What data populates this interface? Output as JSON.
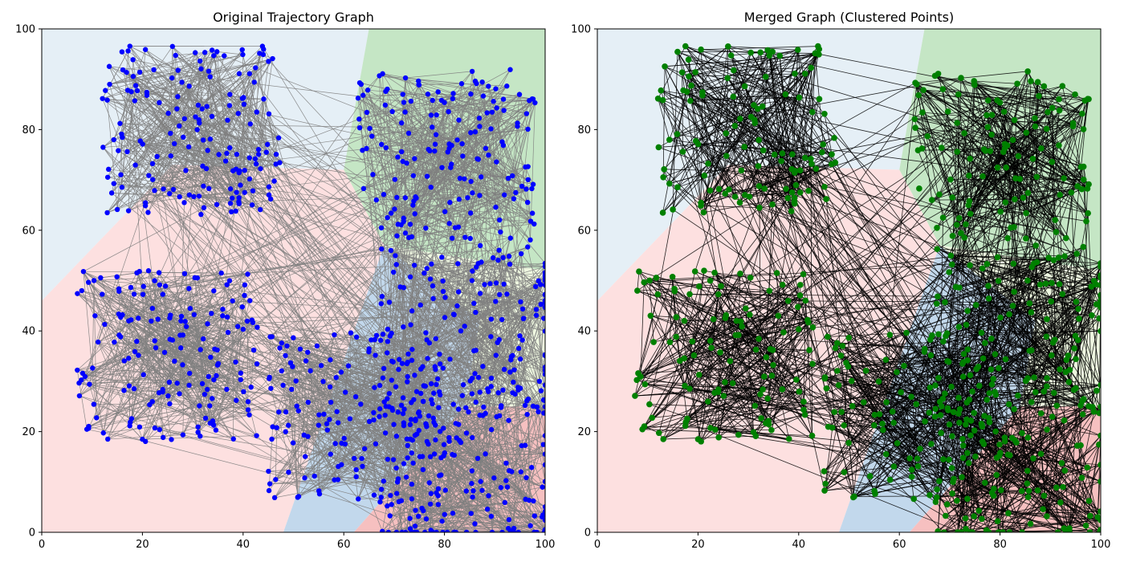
{
  "chart_data": [
    {
      "type": "scatter",
      "title": "Original Trajectory Graph",
      "xlabel": "",
      "ylabel": "",
      "xlim": [
        0,
        100
      ],
      "ylim": [
        0,
        100
      ],
      "xticks": [
        "0",
        "20",
        "40",
        "60",
        "80",
        "100"
      ],
      "yticks": [
        "0",
        "20",
        "40",
        "60",
        "80",
        "100"
      ],
      "grid": false,
      "legend": "none",
      "node_color": "#0000ff",
      "edge_color": "#808080",
      "approx_point_count": 1000,
      "approx_edge_count": 3000,
      "cluster_centers_approx": [
        [
          30,
          80
        ],
        [
          80,
          75
        ],
        [
          25,
          35
        ],
        [
          63,
          23
        ],
        [
          85,
          40
        ],
        [
          85,
          12
        ]
      ],
      "regions": [
        {
          "color": "#e5eff6",
          "polygon": [
            [
              0,
              100
            ],
            [
              65,
              100
            ],
            [
              60,
              72
            ],
            [
              26,
              73
            ],
            [
              0,
              46
            ]
          ]
        },
        {
          "color": "#c5e6c5",
          "polygon": [
            [
              65,
              100
            ],
            [
              100,
              100
            ],
            [
              100,
              52
            ],
            [
              68,
              57
            ],
            [
              60,
              72
            ]
          ]
        },
        {
          "color": "#fde0e0",
          "polygon": [
            [
              0,
              46
            ],
            [
              26,
              73
            ],
            [
              60,
              72
            ],
            [
              68,
              57
            ],
            [
              48,
              0
            ],
            [
              0,
              0
            ]
          ]
        },
        {
          "color": "#c2d8ec",
          "polygon": [
            [
              48,
              0
            ],
            [
              68,
              57
            ],
            [
              87,
              42
            ],
            [
              84,
              25
            ],
            [
              62,
              0
            ]
          ]
        },
        {
          "color": "#eef7e0",
          "polygon": [
            [
              68,
              57
            ],
            [
              100,
              52
            ],
            [
              100,
              25
            ],
            [
              84,
              25
            ],
            [
              87,
              42
            ]
          ]
        },
        {
          "color": "#f6c0c0",
          "polygon": [
            [
              62,
              0
            ],
            [
              84,
              25
            ],
            [
              100,
              25
            ],
            [
              100,
              0
            ]
          ]
        }
      ]
    },
    {
      "type": "scatter",
      "title": "Merged Graph (Clustered Points)",
      "xlabel": "",
      "ylabel": "",
      "xlim": [
        0,
        100
      ],
      "ylim": [
        0,
        100
      ],
      "xticks": [
        "0",
        "20",
        "40",
        "60",
        "80",
        "100"
      ],
      "yticks": [
        "0",
        "20",
        "40",
        "60",
        "80",
        "100"
      ],
      "grid": false,
      "legend": "none",
      "node_color": "#008000",
      "edge_color": "#000000",
      "approx_point_count": 700,
      "approx_edge_count": 2200,
      "cluster_centers_approx": [
        [
          30,
          80
        ],
        [
          80,
          75
        ],
        [
          25,
          35
        ],
        [
          63,
          23
        ],
        [
          85,
          40
        ],
        [
          85,
          12
        ]
      ],
      "regions": [
        {
          "color": "#e5eff6",
          "polygon": [
            [
              0,
              100
            ],
            [
              65,
              100
            ],
            [
              60,
              72
            ],
            [
              26,
              73
            ],
            [
              0,
              46
            ]
          ]
        },
        {
          "color": "#c5e6c5",
          "polygon": [
            [
              65,
              100
            ],
            [
              100,
              100
            ],
            [
              100,
              52
            ],
            [
              68,
              57
            ],
            [
              60,
              72
            ]
          ]
        },
        {
          "color": "#fde0e0",
          "polygon": [
            [
              0,
              46
            ],
            [
              26,
              73
            ],
            [
              60,
              72
            ],
            [
              68,
              57
            ],
            [
              48,
              0
            ],
            [
              0,
              0
            ]
          ]
        },
        {
          "color": "#c2d8ec",
          "polygon": [
            [
              48,
              0
            ],
            [
              68,
              57
            ],
            [
              87,
              42
            ],
            [
              84,
              25
            ],
            [
              62,
              0
            ]
          ]
        },
        {
          "color": "#eef7e0",
          "polygon": [
            [
              68,
              57
            ],
            [
              100,
              52
            ],
            [
              100,
              25
            ],
            [
              84,
              25
            ],
            [
              87,
              42
            ]
          ]
        },
        {
          "color": "#f6c0c0",
          "polygon": [
            [
              62,
              0
            ],
            [
              84,
              25
            ],
            [
              100,
              25
            ],
            [
              100,
              0
            ]
          ]
        }
      ]
    }
  ]
}
